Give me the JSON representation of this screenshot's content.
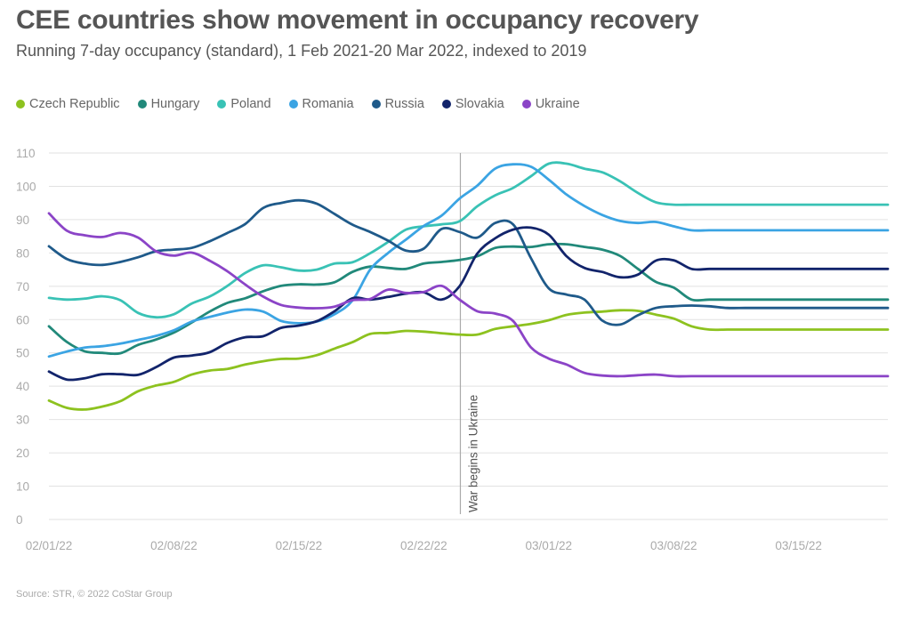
{
  "title": "CEE countries show movement in occupancy recovery",
  "subtitle": "Running 7-day occupancy (standard), 1 Feb 2021-20 Mar 2022, indexed to 2019",
  "source": "Source: STR, © 2022 CoStar Group",
  "chart_data": {
    "type": "line",
    "grid": "horizontal",
    "legend_position": "top",
    "ylim": [
      0,
      110
    ],
    "y_ticks": [
      0,
      10,
      20,
      30,
      40,
      50,
      60,
      70,
      80,
      90,
      100,
      110
    ],
    "x_tick_labels": [
      {
        "x": 1,
        "label": "02/01/22"
      },
      {
        "x": 8,
        "label": "02/08/22"
      },
      {
        "x": 15,
        "label": "02/15/22"
      },
      {
        "x": 22,
        "label": "02/22/22"
      },
      {
        "x": 29,
        "label": "03/01/22"
      },
      {
        "x": 36,
        "label": "03/08/22"
      },
      {
        "x": 43,
        "label": "03/15/22"
      }
    ],
    "x": [
      1,
      2,
      3,
      4,
      5,
      6,
      7,
      8,
      9,
      10,
      11,
      12,
      13,
      14,
      15,
      16,
      17,
      18,
      19,
      20,
      21,
      22,
      23,
      24,
      25,
      26,
      27,
      28,
      29,
      30,
      31,
      32,
      33,
      34,
      35,
      36,
      37,
      38,
      39,
      40,
      41,
      42,
      43,
      44,
      45,
      46,
      47,
      48
    ],
    "annotation": {
      "x": 24,
      "label": "War begins in Ukraine"
    },
    "series": [
      {
        "name": "Czech Republic",
        "color": "#8dc21f",
        "values": [
          35.7,
          33.5,
          33.0,
          33.9,
          35.5,
          38.5,
          40.2,
          41.3,
          43.5,
          44.7,
          45.2,
          46.5,
          47.5,
          48.2,
          48.3,
          49.3,
          51.3,
          53.2,
          55.7,
          56.0,
          56.6,
          56.4,
          55.9,
          55.5,
          55.5,
          57.2,
          58.0,
          58.7,
          59.8,
          61.4,
          62.1,
          62.4,
          62.8,
          62.6,
          61.5,
          60.3,
          58.0,
          57.0,
          57.0,
          57.0,
          57.0,
          57.0,
          57.0,
          57.0,
          57.0,
          57.0,
          57.0,
          57.0
        ]
      },
      {
        "name": "Hungary",
        "color": "#21897a",
        "values": [
          58.0,
          53.3,
          50.5,
          50.0,
          49.9,
          52.4,
          54.0,
          56.1,
          59.1,
          62.4,
          65.0,
          66.4,
          68.5,
          70.1,
          70.6,
          70.5,
          71.2,
          74.3,
          75.9,
          75.5,
          75.2,
          76.8,
          77.3,
          77.9,
          79.0,
          81.5,
          81.9,
          81.8,
          82.6,
          82.6,
          81.8,
          81.0,
          79.1,
          75.2,
          71.3,
          69.6,
          66.0,
          66.0,
          66.0,
          66.0,
          66.0,
          66.0,
          66.0,
          66.0,
          66.0,
          66.0,
          66.0,
          66.0
        ]
      },
      {
        "name": "Poland",
        "color": "#39c2b5",
        "values": [
          66.5,
          66.0,
          66.3,
          67.0,
          65.8,
          62.0,
          60.7,
          61.6,
          64.8,
          66.9,
          70.1,
          74.0,
          76.3,
          75.7,
          74.7,
          75.0,
          76.8,
          77.2,
          79.9,
          83.3,
          87.0,
          88.0,
          88.6,
          89.5,
          94.0,
          97.3,
          99.5,
          103.0,
          106.8,
          106.8,
          105.3,
          104.2,
          101.5,
          98.0,
          95.2,
          94.5,
          94.5,
          94.5,
          94.5,
          94.5,
          94.5,
          94.5,
          94.5,
          94.5,
          94.5,
          94.5,
          94.5,
          94.5
        ]
      },
      {
        "name": "Romania",
        "color": "#3ba4e3",
        "values": [
          48.9,
          50.4,
          51.6,
          52.0,
          52.8,
          53.9,
          55.1,
          56.8,
          59.4,
          60.8,
          62.1,
          63.0,
          62.4,
          59.6,
          58.9,
          59.4,
          61.6,
          65.7,
          75.0,
          80.0,
          84.0,
          88.1,
          91.2,
          96.3,
          100.2,
          105.3,
          106.6,
          105.9,
          102.0,
          97.5,
          94.1,
          91.4,
          89.6,
          89.0,
          89.3,
          88.0,
          86.8,
          86.8,
          86.8,
          86.8,
          86.8,
          86.8,
          86.8,
          86.8,
          86.8,
          86.8,
          86.8,
          86.8
        ]
      },
      {
        "name": "Russia",
        "color": "#1f5a8a",
        "values": [
          82.0,
          78.2,
          76.8,
          76.4,
          77.3,
          78.7,
          80.5,
          81.0,
          81.5,
          83.5,
          86.0,
          88.7,
          93.5,
          95.0,
          95.8,
          94.8,
          91.7,
          88.5,
          86.3,
          83.7,
          80.7,
          81.3,
          87.2,
          86.3,
          84.6,
          89.0,
          88.6,
          78.5,
          69.4,
          67.5,
          66.0,
          59.7,
          58.5,
          61.3,
          63.5,
          64.0,
          64.2,
          64.0,
          63.5,
          63.5,
          63.5,
          63.5,
          63.5,
          63.5,
          63.5,
          63.5,
          63.5,
          63.5
        ]
      },
      {
        "name": "Slovakia",
        "color": "#12246b",
        "values": [
          44.4,
          42.0,
          42.4,
          43.6,
          43.6,
          43.4,
          45.7,
          48.6,
          49.2,
          50.2,
          53.0,
          54.7,
          55.0,
          57.5,
          58.2,
          59.5,
          62.5,
          66.4,
          66.0,
          66.8,
          67.8,
          68.2,
          66.0,
          70.0,
          79.8,
          84.4,
          87.0,
          87.6,
          85.5,
          79.0,
          75.5,
          74.3,
          72.7,
          73.5,
          77.7,
          77.8,
          75.2,
          75.2,
          75.2,
          75.2,
          75.2,
          75.2,
          75.2,
          75.2,
          75.2,
          75.2,
          75.2,
          75.2
        ]
      },
      {
        "name": "Ukraine",
        "color": "#8b44c7",
        "values": [
          91.9,
          86.7,
          85.3,
          84.8,
          86.0,
          84.6,
          80.5,
          79.2,
          80.1,
          77.7,
          74.5,
          70.5,
          66.9,
          64.4,
          63.6,
          63.4,
          63.9,
          65.8,
          66.2,
          69.0,
          68.0,
          68.3,
          70.1,
          66.0,
          62.5,
          61.8,
          59.6,
          51.7,
          48.3,
          46.5,
          44.0,
          43.2,
          43.0,
          43.3,
          43.5,
          43.0,
          43.0,
          43.0,
          43.0,
          43.0,
          43.0,
          43.0,
          43.0,
          43.0,
          43.0,
          43.0,
          43.0,
          43.0
        ]
      }
    ]
  }
}
